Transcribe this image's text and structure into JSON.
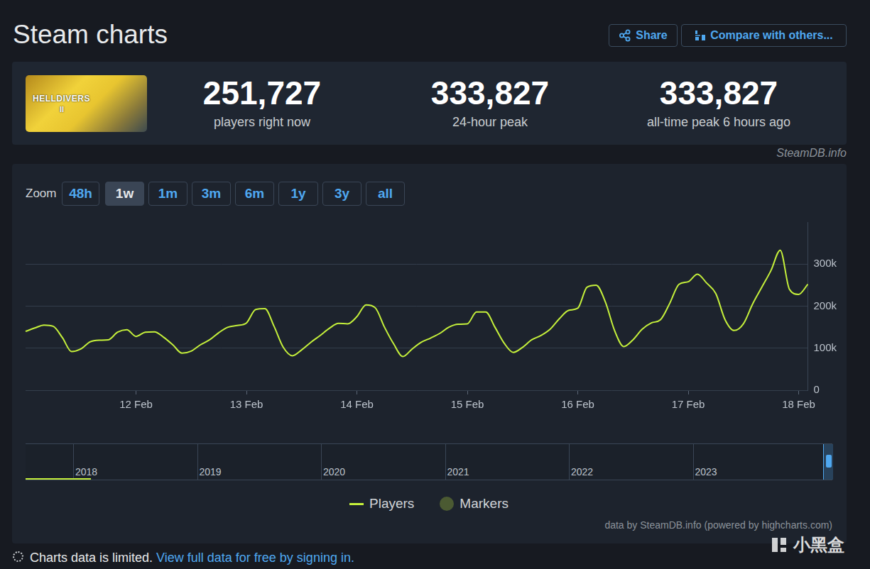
{
  "page": {
    "title": "Steam charts",
    "buttons": [
      "Share",
      "Compare with others..."
    ],
    "game_image": [
      "HELLDIVERS",
      "II"
    ],
    "stats": [
      {
        "value": "251,727",
        "label": "players right now"
      },
      {
        "value": "333,827",
        "label": "24-hour peak"
      },
      {
        "value": "333,827",
        "label": "all-time peak 6 hours ago"
      }
    ],
    "source": "SteamDB.info",
    "zoom": {
      "label": "Zoom",
      "options": [
        "48h",
        "1w",
        "1m",
        "3m",
        "6m",
        "1y",
        "3y",
        "all"
      ],
      "active": "1w"
    },
    "navigator_labels": [
      "2018",
      "2019",
      "2020",
      "2021",
      "2022",
      "2023"
    ],
    "credits": "data by SteamDB.info (powered by highcharts.com)",
    "notice": "Charts data is limited.",
    "notice_link": "View full data for free by signing in.",
    "watermark": "小黑盒"
  },
  "chart_data": {
    "type": "line",
    "categories": [
      null,
      null,
      null,
      null,
      null,
      null,
      null,
      null,
      null,
      null,
      null,
      null,
      "12 Feb",
      null,
      null,
      null,
      null,
      null,
      null,
      null,
      null,
      null,
      null,
      null,
      "13 Feb",
      null,
      null,
      null,
      null,
      null,
      null,
      null,
      null,
      null,
      null,
      null,
      "14 Feb",
      null,
      null,
      null,
      null,
      null,
      null,
      null,
      null,
      null,
      null,
      null,
      "15 Feb",
      null,
      null,
      null,
      null,
      null,
      null,
      null,
      null,
      null,
      null,
      null,
      "16 Feb",
      null,
      null,
      null,
      null,
      null,
      null,
      null,
      null,
      null,
      null,
      null,
      "17 Feb",
      null,
      null,
      null,
      null,
      null,
      null,
      null,
      null,
      null,
      null,
      null,
      "18 Feb",
      null
    ],
    "series": [
      {
        "name": "Players",
        "color": "#c5f03b",
        "values": [
          140000,
          148000,
          155000,
          152000,
          125000,
          92000,
          98000,
          115000,
          119000,
          120000,
          138000,
          144000,
          128000,
          138000,
          139000,
          126000,
          108000,
          88000,
          93000,
          108000,
          120000,
          137000,
          150000,
          154000,
          160000,
          192000,
          194000,
          152000,
          102000,
          82000,
          96000,
          114000,
          130000,
          147000,
          159000,
          158000,
          175000,
          203000,
          196000,
          150000,
          110000,
          80000,
          98000,
          114000,
          124000,
          135000,
          150000,
          157000,
          158000,
          186000,
          186000,
          150000,
          112000,
          90000,
          102000,
          120000,
          130000,
          145000,
          170000,
          190000,
          195000,
          245000,
          250000,
          210000,
          142000,
          104000,
          120000,
          145000,
          160000,
          168000,
          207000,
          252000,
          258000,
          276000,
          255000,
          230000,
          168000,
          142000,
          158000,
          205000,
          245000,
          285000,
          333000,
          240000,
          228000,
          252000
        ]
      },
      {
        "name": "Markers",
        "color": "#4b5a32",
        "marker": "circle",
        "values": [
          null,
          null,
          null,
          null,
          null,
          null,
          null,
          null,
          null,
          null,
          null,
          null,
          null,
          null,
          null,
          null,
          null,
          null,
          null,
          null,
          null,
          null,
          null,
          null,
          null,
          null,
          null,
          null,
          null,
          null,
          null,
          null,
          null,
          null,
          null,
          null,
          null,
          null,
          null,
          null,
          null,
          null,
          null,
          null,
          null,
          null,
          null,
          null,
          null,
          null,
          null,
          null,
          null,
          null,
          null,
          null,
          null,
          null,
          null,
          null,
          null,
          null,
          null,
          null,
          null,
          null,
          null,
          null,
          null,
          null,
          null,
          null,
          null,
          null,
          null,
          null,
          null,
          null,
          null,
          null,
          null,
          null,
          null,
          null,
          null,
          null
        ]
      }
    ],
    "ylim": [
      0,
      400000
    ],
    "yticks": [
      0,
      {
        "value": 100000,
        "label": "100k"
      },
      {
        "value": 200000,
        "label": "200k"
      },
      {
        "value": 300000,
        "label": "300k"
      }
    ],
    "grid": true,
    "legend": "bottom"
  }
}
